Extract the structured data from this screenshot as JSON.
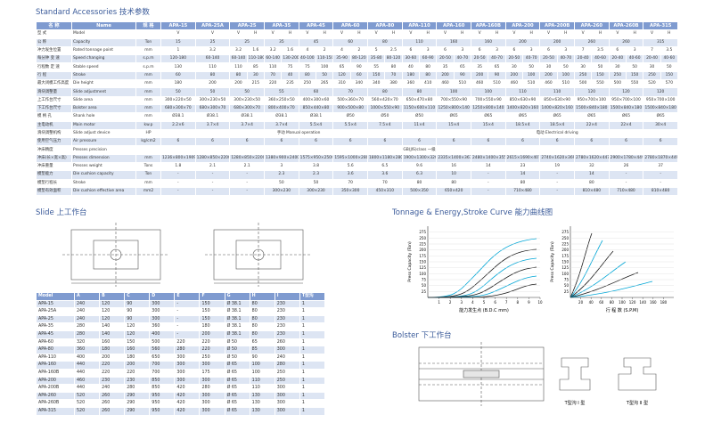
{
  "header": {
    "title": "Standard Accessories",
    "title_cn": "技术参数"
  },
  "spec_table": {
    "head": [
      "名 称",
      "Name",
      "规 格"
    ],
    "models": [
      "APA-15",
      "APA-25A",
      "APA-25",
      "APA-35",
      "APA-45",
      "APA-60",
      "APA-80",
      "APA-110",
      "APA-160",
      "APA-160B",
      "APA-200",
      "APA-200B",
      "APA-260",
      "APA-260B",
      "APA-315"
    ],
    "rows": [
      {
        "cn": "型 式",
        "en": "Model",
        "unit": "",
        "cells": [
          "V",
          "V",
          [
            "V",
            "H"
          ],
          [
            "V",
            "H"
          ],
          [
            "V",
            "H"
          ],
          [
            "V",
            "H"
          ],
          [
            "V",
            "H"
          ],
          [
            "V",
            "H"
          ],
          [
            "V",
            "H"
          ],
          [
            "V",
            "H"
          ],
          [
            "V",
            "H"
          ],
          [
            "V",
            "H"
          ],
          [
            "V",
            "H"
          ],
          [
            "V",
            "H"
          ],
          [
            "V",
            "H"
          ]
        ]
      },
      {
        "cn": "公 称",
        "en": "Capacity",
        "unit": "Ton",
        "cells": [
          "15",
          "25",
          "25",
          "35",
          "45",
          "60",
          "80",
          "110",
          "160",
          "160",
          "200",
          "200",
          "260",
          "260",
          "315"
        ]
      },
      {
        "cn": "冲力发生位置",
        "en": "Rated tonnage point",
        "unit": "mm",
        "cells": [
          "1",
          "3.2",
          [
            "3.2",
            "1.6"
          ],
          [
            "3.2",
            "1.6"
          ],
          [
            "4",
            "2"
          ],
          [
            "4",
            "2"
          ],
          [
            "5",
            "2.5"
          ],
          [
            "6",
            "3"
          ],
          [
            "6",
            "3"
          ],
          [
            "6",
            "3"
          ],
          [
            "6",
            "3"
          ],
          [
            "6",
            "3"
          ],
          [
            "7",
            "3.5"
          ],
          [
            "6",
            "3"
          ],
          [
            "7",
            "3.5"
          ]
        ]
      },
      {
        "cn": "每分钟 变 速",
        "en": "Speed changing",
        "unit": "s.p.m",
        "cells": [
          "120-180",
          "60-140",
          [
            "60-140",
            "110-180"
          ],
          [
            "60-140",
            "130-200"
          ],
          [
            "40-100",
            "110-150"
          ],
          [
            "35-90",
            "80-120"
          ],
          [
            "35-80",
            "80-120"
          ],
          [
            "30-60",
            "60-90"
          ],
          [
            "20-50",
            "40-70"
          ],
          [
            "20-50",
            "40-70"
          ],
          [
            "20-50",
            "40-70"
          ],
          [
            "20-50",
            "40-70"
          ],
          [
            "20-40",
            "40-60"
          ],
          [
            "20-40",
            "40-60"
          ],
          [
            "20-40",
            "40-60"
          ]
        ]
      },
      {
        "cn": "行程数 定 速",
        "en": "Stable speed",
        "unit": "s.p.m",
        "cells": [
          "130",
          "110",
          [
            "110",
            "85"
          ],
          [
            "110",
            "75"
          ],
          [
            "75",
            "100"
          ],
          [
            "65",
            "90"
          ],
          [
            "55",
            "80"
          ],
          [
            "40",
            "80"
          ],
          [
            "35",
            "65"
          ],
          [
            "35",
            "65"
          ],
          [
            "30",
            "50"
          ],
          [
            "30",
            "50"
          ],
          [
            "30",
            "50"
          ],
          [
            "30",
            "50"
          ],
          [
            "30",
            "50"
          ]
        ]
      },
      {
        "cn": "行 程",
        "en": "Stroke",
        "unit": "mm",
        "cells": [
          "60",
          "80",
          [
            "80",
            "30"
          ],
          [
            "70",
            "40"
          ],
          [
            "80",
            "50"
          ],
          [
            "120",
            "60"
          ],
          [
            "150",
            "70"
          ],
          [
            "180",
            "80"
          ],
          [
            "200",
            "90"
          ],
          [
            "200",
            "90"
          ],
          [
            "200",
            "100"
          ],
          [
            "200",
            "100"
          ],
          [
            "250",
            "150"
          ],
          [
            "250",
            "150"
          ],
          [
            "250",
            "150"
          ]
        ]
      },
      {
        "cn": "最大闭模工作高度",
        "en": "Die height",
        "unit": "mm",
        "cells": [
          "180",
          "200",
          [
            "200",
            "215"
          ],
          [
            "220",
            "235"
          ],
          [
            "250",
            "265"
          ],
          [
            "310",
            "340"
          ],
          [
            "340",
            "380"
          ],
          [
            "360",
            "410"
          ],
          [
            "460",
            "510"
          ],
          [
            "460",
            "510"
          ],
          [
            "460",
            "510"
          ],
          [
            "460",
            "510"
          ],
          [
            "500",
            "550"
          ],
          [
            "500",
            "550"
          ],
          [
            "520",
            "570"
          ]
        ]
      },
      {
        "cn": "滑块调整量",
        "en": "Slide adjustment",
        "unit": "mm",
        "cells": [
          "50",
          "50",
          "50",
          "55",
          "60",
          "70",
          "80",
          "80",
          "100",
          "100",
          "110",
          "110",
          "120",
          "120",
          "120"
        ]
      },
      {
        "cn": "上工作台尺寸",
        "en": "Slide area",
        "unit": "mm",
        "cells": [
          "300×220×50",
          "300×230×50",
          "300×230×50",
          "360×250×50",
          "400×300×60",
          "500×360×70",
          "560×420×70",
          "650×470×80",
          "700×550×90",
          "700×550×90",
          "850×630×90",
          "850×630×90",
          "950×700×100",
          "950×700×100",
          "950×700×100"
        ]
      },
      {
        "cn": "下工作台尺寸",
        "en": "Bolster area",
        "unit": "mm",
        "cells": [
          "680×300×70",
          "680×300×70",
          "680×300×70",
          "800×400×70",
          "850×440×80",
          "900×500×80",
          "1000×550×90",
          "1150×600×110",
          "1250×800×140",
          "1250×800×140",
          "1400×820×160",
          "1400×820×160",
          "1500×840×180",
          "1500×840×180",
          "1500×840×180"
        ]
      },
      {
        "cn": "模 柄 孔",
        "en": "Shank hole",
        "unit": "mm",
        "cells": [
          "Ø38.1",
          "Ø38.1",
          "Ø38.1",
          "Ø38.1",
          "Ø38.1",
          "Ø50",
          "Ø50",
          "Ø50",
          "Ø65",
          "Ø65",
          "Ø65",
          "Ø65",
          "Ø65",
          "Ø65",
          "Ø65"
        ]
      },
      {
        "cn": "主电动机",
        "en": "Main motor",
        "unit": "kw.p",
        "cells": [
          "2.2×6",
          "3.7×4",
          "3.7×4",
          "3.7×4",
          "5.5×4",
          "5.5×4",
          "7.5×4",
          "11×4",
          "15×4",
          "15×4",
          "18.5×4",
          "18.5×4",
          "22×4",
          "22×4",
          "30×4"
        ]
      },
      {
        "cn": "滑块调整机构",
        "en": "Slide adjust device",
        "unit": "HP",
        "cells": [
          "手动 Manual operation",
          null,
          null,
          null,
          null,
          null,
          null,
          null,
          "电动 Electrical driving",
          null,
          null,
          null,
          null,
          null,
          null
        ]
      },
      {
        "cn": "使用空气压力",
        "en": "Air pressure",
        "unit": "kg/cm2",
        "cells": [
          "6",
          "6",
          "6",
          "6",
          "6",
          "6",
          "6",
          "6",
          "6",
          "6",
          "6",
          "6",
          "6",
          "6",
          "6"
        ]
      },
      {
        "cn": "冲床精度",
        "en": "Presses precision",
        "unit": "",
        "cells": [
          "GB(JIS)class 一级",
          null,
          null,
          null,
          null,
          null,
          null,
          null,
          null,
          null,
          null,
          null,
          null,
          null,
          null
        ]
      },
      {
        "cn": "冲床(长×宽×高)",
        "en": "Presses dimension",
        "unit": "mm",
        "cells": [
          "1236×800×1909",
          "1280×850×2200",
          "1280×850×2200",
          "1380×900×2400",
          "1575×950×2500",
          "1595×1000×2800",
          "1800×1180×2800",
          "1900×1300×3200",
          "2335×1400×3670",
          "2480×1400×3550",
          "2615×1690×4075",
          "2740×1620×3690",
          "2780×1620×4470",
          "2900×1780×4490",
          "2780×1870×4490"
        ]
      },
      {
        "cn": "冲床重量",
        "en": "Presses weight",
        "unit": "Tons",
        "cells": [
          "1.8",
          "2.1",
          "2.1",
          "3",
          "3.8",
          "5.6",
          "6.5",
          "9.6",
          "16",
          "14",
          "23",
          "19",
          "32",
          "26",
          "37"
        ]
      },
      {
        "cn": "模垫能力",
        "en": "Die cushion capacity",
        "unit": "Ton",
        "cells": [
          "-",
          "-",
          "-",
          "2.3",
          "2.3",
          "3.6",
          "3.6",
          "6.3",
          "10",
          "-",
          "14",
          "-",
          "14",
          "-",
          "-"
        ]
      },
      {
        "cn": "模垫行程长",
        "en": "Stroke",
        "unit": "mm",
        "cells": [
          "-",
          "-",
          "-",
          "50",
          "50",
          "70",
          "70",
          "80",
          "80",
          "-",
          "80",
          "-",
          "80",
          "-",
          "-"
        ]
      },
      {
        "cn": "模垫有效面积",
        "en": "Die cushion effective area",
        "unit": "mm2",
        "cells": [
          "-",
          "-",
          "-",
          "300×230",
          "300×230",
          "350×300",
          "450×310",
          "500×350",
          "650×420",
          "-",
          "710×480",
          "-",
          "810×480",
          "710×480",
          "810×480"
        ]
      }
    ]
  },
  "slide": {
    "title": "Slide",
    "title_cn": "上工作台",
    "columns": [
      "Model",
      "A",
      "B",
      "C",
      "D",
      "E",
      "F",
      "G",
      "H",
      "I",
      "T型沟"
    ],
    "rows": [
      [
        "APA-15",
        "240",
        "120",
        "90",
        "300",
        "-",
        "150",
        "Ø 38.1",
        "80",
        "230",
        "1"
      ],
      [
        "APA-25A",
        "240",
        "120",
        "90",
        "300",
        "-",
        "150",
        "Ø 38.1",
        "80",
        "230",
        "1"
      ],
      [
        "APA-25",
        "240",
        "120",
        "90",
        "300",
        "-",
        "150",
        "Ø 38.1",
        "80",
        "230",
        "1"
      ],
      [
        "APA-35",
        "280",
        "140",
        "120",
        "360",
        "-",
        "180",
        "Ø 38.1",
        "80",
        "230",
        "1"
      ],
      [
        "APA-45",
        "280",
        "140",
        "120",
        "400",
        "-",
        "200",
        "Ø 38.1",
        "80",
        "230",
        "1"
      ],
      [
        "APA-60",
        "320",
        "160",
        "150",
        "500",
        "220",
        "220",
        "Ø 50",
        "65",
        "260",
        "1"
      ],
      [
        "APA-80",
        "360",
        "180",
        "160",
        "560",
        "280",
        "220",
        "Ø 50",
        "85",
        "300",
        "1"
      ],
      [
        "APA-110",
        "400",
        "200",
        "180",
        "650",
        "300",
        "250",
        "Ø 50",
        "90",
        "240",
        "1"
      ],
      [
        "APA-160",
        "440",
        "220",
        "200",
        "700",
        "300",
        "300",
        "Ø 65",
        "100",
        "280",
        "1"
      ],
      [
        "APA-160B",
        "440",
        "220",
        "220",
        "700",
        "300",
        "175",
        "Ø 65",
        "100",
        "250",
        "1"
      ],
      [
        "APA-200",
        "460",
        "230",
        "230",
        "850",
        "300",
        "300",
        "Ø 65",
        "110",
        "250",
        "1"
      ],
      [
        "APA-200B",
        "440",
        "240",
        "280",
        "850",
        "420",
        "280",
        "Ø 65",
        "110",
        "300",
        "1"
      ],
      [
        "APA-260",
        "520",
        "260",
        "290",
        "950",
        "420",
        "300",
        "Ø 65",
        "130",
        "300",
        "1"
      ],
      [
        "APA-260B",
        "520",
        "260",
        "290",
        "950",
        "420",
        "300",
        "Ø 65",
        "130",
        "300",
        "1"
      ],
      [
        "APA-315",
        "520",
        "260",
        "290",
        "950",
        "420",
        "300",
        "Ø 65",
        "130",
        "300",
        "1"
      ]
    ]
  },
  "curves": {
    "title": "Tonnage & Energy,Stroke Curve",
    "title_cn": "能力曲线图",
    "charts": [
      {
        "ylabel": "Press Capacity (Ton)",
        "xlabel": "能力发生点 (B.D.C mm)",
        "ylim": [
          0,
          300
        ],
        "yticks": [
          25,
          50,
          75,
          100,
          125,
          150,
          175,
          200,
          225,
          250,
          275
        ],
        "xlim": [
          0,
          10
        ],
        "xticks": [
          1,
          2,
          3,
          4,
          5,
          6,
          7,
          8,
          9,
          10
        ]
      },
      {
        "ylabel": "Press Capacity (Ton)",
        "xlabel": "行 程 数 (S.P.M)",
        "ylim": [
          0,
          300
        ],
        "yticks": [
          25,
          50,
          75,
          100,
          125,
          150,
          175,
          200,
          225,
          250,
          275
        ],
        "xlim": [
          0,
          200
        ],
        "xticks": [
          20,
          40,
          60,
          80,
          100,
          120,
          140,
          160,
          180
        ]
      }
    ]
  },
  "bolster": {
    "title": "Bolster",
    "title_cn": "下工作台",
    "type1": "T型沟 I 型",
    "type2": "T型沟 II 型"
  }
}
